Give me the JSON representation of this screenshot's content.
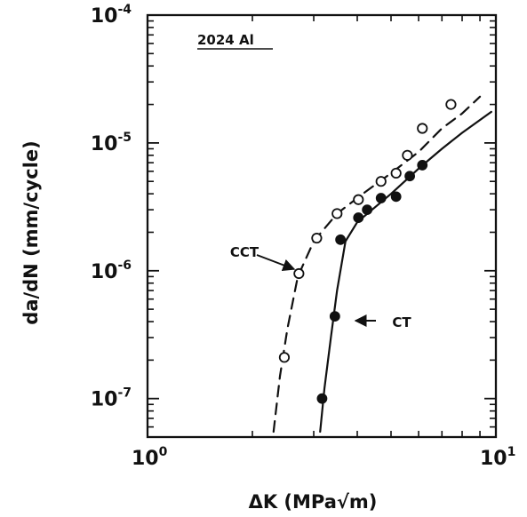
{
  "chart_data": {
    "type": "scatter",
    "panel_label": "2024 Al",
    "xlabel": "ΔK (MPa√m)",
    "ylabel": "da/dN (mm/cycle)",
    "xscale": "log",
    "yscale": "log",
    "xlim": [
      1,
      10
    ],
    "ylim": [
      5e-08,
      0.0001
    ],
    "grid": false,
    "x_ticks": [
      {
        "value": 1,
        "base": "10",
        "exp": "0"
      },
      {
        "value": 10,
        "base": "10",
        "exp": "1"
      }
    ],
    "y_ticks": [
      {
        "value": 0.0001,
        "base": "10",
        "exp": "-4"
      },
      {
        "value": 1e-05,
        "base": "10",
        "exp": "-5"
      },
      {
        "value": 1e-06,
        "base": "10",
        "exp": "-6"
      },
      {
        "value": 1e-07,
        "base": "10",
        "exp": "-7"
      }
    ],
    "series": [
      {
        "name": "CCT",
        "marker": "open-circle",
        "line_style": "dashed",
        "points": [
          {
            "x": 2.47,
            "y": 2.1e-07
          },
          {
            "x": 2.72,
            "y": 9.5e-07
          },
          {
            "x": 3.06,
            "y": 1.8e-06
          },
          {
            "x": 3.5,
            "y": 2.8e-06
          },
          {
            "x": 4.03,
            "y": 3.6e-06
          },
          {
            "x": 4.68,
            "y": 5e-06
          },
          {
            "x": 5.17,
            "y": 5.8e-06
          },
          {
            "x": 5.57,
            "y": 8e-06
          },
          {
            "x": 6.15,
            "y": 1.3e-05
          },
          {
            "x": 7.43,
            "y": 2e-05
          }
        ],
        "curve": [
          {
            "x": 2.3,
            "y": 5.5e-08
          },
          {
            "x": 2.4,
            "y": 1.5e-07
          },
          {
            "x": 2.52,
            "y": 3.5e-07
          },
          {
            "x": 2.7,
            "y": 9e-07
          },
          {
            "x": 3.0,
            "y": 1.7e-06
          },
          {
            "x": 3.5,
            "y": 2.8e-06
          },
          {
            "x": 4.2,
            "y": 4.1e-06
          },
          {
            "x": 5.0,
            "y": 5.8e-06
          },
          {
            "x": 6.0,
            "y": 8.5e-06
          },
          {
            "x": 7.0,
            "y": 1.3e-05
          },
          {
            "x": 8.0,
            "y": 1.7e-05
          },
          {
            "x": 9.0,
            "y": 2.3e-05
          }
        ]
      },
      {
        "name": "CT",
        "marker": "filled-circle",
        "line_style": "solid",
        "points": [
          {
            "x": 3.17,
            "y": 1e-07
          },
          {
            "x": 3.45,
            "y": 4.4e-07
          },
          {
            "x": 3.58,
            "y": 1.75e-06
          },
          {
            "x": 4.03,
            "y": 2.6e-06
          },
          {
            "x": 4.27,
            "y": 3e-06
          },
          {
            "x": 4.68,
            "y": 3.7e-06
          },
          {
            "x": 5.17,
            "y": 3.8e-06
          },
          {
            "x": 5.66,
            "y": 5.5e-06
          },
          {
            "x": 6.15,
            "y": 6.7e-06
          }
        ],
        "curve": [
          {
            "x": 3.13,
            "y": 5.5e-08
          },
          {
            "x": 3.22,
            "y": 1.2e-07
          },
          {
            "x": 3.36,
            "y": 3e-07
          },
          {
            "x": 3.5,
            "y": 7e-07
          },
          {
            "x": 3.7,
            "y": 1.7e-06
          },
          {
            "x": 4.0,
            "y": 2.4e-06
          },
          {
            "x": 5.0,
            "y": 4e-06
          },
          {
            "x": 6.0,
            "y": 6.3e-06
          },
          {
            "x": 7.0,
            "y": 9e-06
          },
          {
            "x": 8.0,
            "y": 1.2e-05
          },
          {
            "x": 9.7,
            "y": 1.75e-05
          }
        ]
      }
    ]
  }
}
